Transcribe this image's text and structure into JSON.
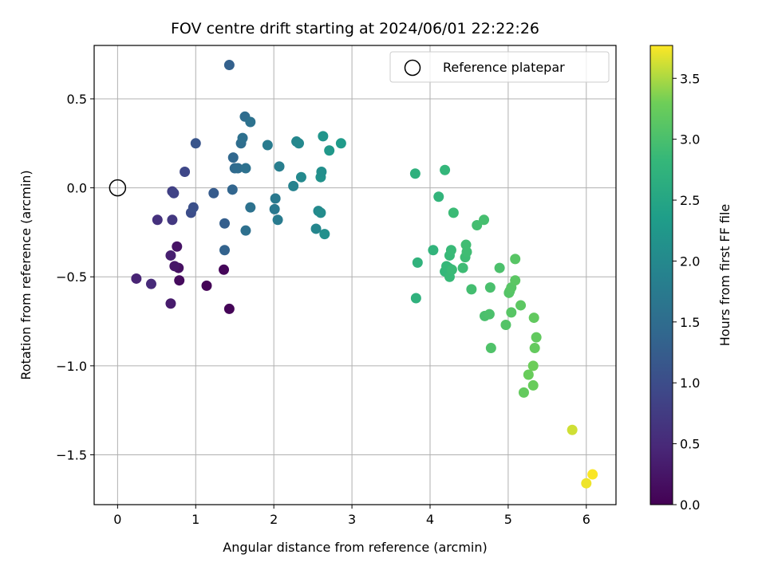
{
  "chart_data": {
    "type": "scatter",
    "title": "FOV centre drift starting at 2024/06/01 22:22:26",
    "xlabel": "Angular distance from reference (arcmin)",
    "ylabel": "Rotation from reference (arcmin)",
    "xlim": [
      -0.3,
      6.38
    ],
    "ylim": [
      -1.78,
      0.8
    ],
    "xticks": [
      0,
      1,
      2,
      3,
      4,
      5,
      6
    ],
    "xtick_labels": [
      "0",
      "1",
      "2",
      "3",
      "4",
      "5",
      "6"
    ],
    "yticks": [
      0.5,
      0.0,
      -0.5,
      -1.0,
      -1.5
    ],
    "ytick_labels": [
      "0.5",
      "0.0",
      "−0.5",
      "−1.0",
      "−1.5"
    ],
    "grid": true,
    "colormap": "viridis",
    "colorbar": {
      "label": "Hours from first FF file",
      "range": [
        0.0,
        3.77
      ],
      "ticks": [
        0.0,
        0.5,
        1.0,
        1.5,
        2.0,
        2.5,
        3.0,
        3.5
      ],
      "tick_labels": [
        "0.0",
        "0.5",
        "1.0",
        "1.5",
        "2.0",
        "2.5",
        "3.0",
        "3.5"
      ]
    },
    "legend": {
      "placement": "top-right",
      "label": "Reference platepar"
    },
    "reference_point": {
      "x": 0.0,
      "y": 0.0,
      "marker": "open-circle"
    },
    "points": [
      {
        "x": 1.14,
        "y": -0.55,
        "c": 0.02
      },
      {
        "x": 1.43,
        "y": -0.68,
        "c": 0.04
      },
      {
        "x": 1.36,
        "y": -0.46,
        "c": 0.06
      },
      {
        "x": 0.79,
        "y": -0.52,
        "c": 0.12
      },
      {
        "x": 0.78,
        "y": -0.45,
        "c": 0.18
      },
      {
        "x": 0.76,
        "y": -0.33,
        "c": 0.22
      },
      {
        "x": 0.73,
        "y": -0.44,
        "c": 0.26
      },
      {
        "x": 0.68,
        "y": -0.65,
        "c": 0.32
      },
      {
        "x": 0.68,
        "y": -0.38,
        "c": 0.36
      },
      {
        "x": 0.24,
        "y": -0.51,
        "c": 0.42
      },
      {
        "x": 0.43,
        "y": -0.54,
        "c": 0.5
      },
      {
        "x": 0.51,
        "y": -0.18,
        "c": 0.6
      },
      {
        "x": 0.7,
        "y": -0.18,
        "c": 0.7
      },
      {
        "x": 0.7,
        "y": -0.02,
        "c": 0.78
      },
      {
        "x": 0.72,
        "y": -0.03,
        "c": 0.85
      },
      {
        "x": 0.86,
        "y": 0.09,
        "c": 0.92
      },
      {
        "x": 0.94,
        "y": -0.14,
        "c": 1.0
      },
      {
        "x": 0.97,
        "y": -0.11,
        "c": 1.05
      },
      {
        "x": 1.0,
        "y": 0.25,
        "c": 1.12
      },
      {
        "x": 1.23,
        "y": -0.03,
        "c": 1.22
      },
      {
        "x": 1.37,
        "y": -0.2,
        "c": 1.28
      },
      {
        "x": 1.37,
        "y": -0.35,
        "c": 1.34
      },
      {
        "x": 1.43,
        "y": 0.69,
        "c": 1.3
      },
      {
        "x": 1.47,
        "y": -0.01,
        "c": 1.38
      },
      {
        "x": 1.48,
        "y": 0.17,
        "c": 1.42
      },
      {
        "x": 1.5,
        "y": 0.11,
        "c": 1.45
      },
      {
        "x": 1.54,
        "y": 0.11,
        "c": 1.48
      },
      {
        "x": 1.58,
        "y": 0.25,
        "c": 1.52
      },
      {
        "x": 1.6,
        "y": 0.28,
        "c": 1.55
      },
      {
        "x": 1.63,
        "y": 0.4,
        "c": 1.5
      },
      {
        "x": 1.64,
        "y": 0.11,
        "c": 1.58
      },
      {
        "x": 1.64,
        "y": -0.24,
        "c": 1.55
      },
      {
        "x": 1.7,
        "y": 0.37,
        "c": 1.6
      },
      {
        "x": 1.7,
        "y": -0.11,
        "c": 1.6
      },
      {
        "x": 1.92,
        "y": 0.24,
        "c": 1.75
      },
      {
        "x": 2.01,
        "y": -0.12,
        "c": 1.7
      },
      {
        "x": 2.02,
        "y": -0.06,
        "c": 1.72
      },
      {
        "x": 2.05,
        "y": -0.18,
        "c": 1.75
      },
      {
        "x": 2.07,
        "y": 0.12,
        "c": 1.82
      },
      {
        "x": 2.25,
        "y": 0.01,
        "c": 1.88
      },
      {
        "x": 2.29,
        "y": 0.26,
        "c": 1.95
      },
      {
        "x": 2.32,
        "y": 0.25,
        "c": 1.98
      },
      {
        "x": 2.35,
        "y": 0.06,
        "c": 2.0
      },
      {
        "x": 2.54,
        "y": -0.23,
        "c": 1.95
      },
      {
        "x": 2.57,
        "y": -0.13,
        "c": 2.0
      },
      {
        "x": 2.6,
        "y": -0.14,
        "c": 2.05
      },
      {
        "x": 2.6,
        "y": 0.06,
        "c": 2.15
      },
      {
        "x": 2.61,
        "y": 0.09,
        "c": 2.1
      },
      {
        "x": 2.63,
        "y": 0.29,
        "c": 2.2
      },
      {
        "x": 2.65,
        "y": -0.26,
        "c": 2.12
      },
      {
        "x": 2.71,
        "y": 0.21,
        "c": 2.25
      },
      {
        "x": 2.86,
        "y": 0.25,
        "c": 2.3
      },
      {
        "x": 3.81,
        "y": 0.08,
        "c": 2.7
      },
      {
        "x": 3.82,
        "y": -0.62,
        "c": 2.72
      },
      {
        "x": 3.84,
        "y": -0.42,
        "c": 2.74
      },
      {
        "x": 4.04,
        "y": -0.35,
        "c": 2.76
      },
      {
        "x": 4.11,
        "y": -0.05,
        "c": 2.78
      },
      {
        "x": 4.19,
        "y": 0.1,
        "c": 2.8
      },
      {
        "x": 4.19,
        "y": -0.47,
        "c": 2.8
      },
      {
        "x": 4.21,
        "y": -0.44,
        "c": 2.82
      },
      {
        "x": 4.24,
        "y": -0.45,
        "c": 2.83
      },
      {
        "x": 4.25,
        "y": -0.38,
        "c": 2.85
      },
      {
        "x": 4.25,
        "y": -0.5,
        "c": 2.85
      },
      {
        "x": 4.27,
        "y": -0.35,
        "c": 2.86
      },
      {
        "x": 4.28,
        "y": -0.46,
        "c": 2.87
      },
      {
        "x": 4.3,
        "y": -0.14,
        "c": 2.88
      },
      {
        "x": 4.42,
        "y": -0.45,
        "c": 2.9
      },
      {
        "x": 4.45,
        "y": -0.39,
        "c": 2.9
      },
      {
        "x": 4.46,
        "y": -0.32,
        "c": 2.92
      },
      {
        "x": 4.47,
        "y": -0.36,
        "c": 2.92
      },
      {
        "x": 4.53,
        "y": -0.57,
        "c": 2.95
      },
      {
        "x": 4.6,
        "y": -0.21,
        "c": 2.95
      },
      {
        "x": 4.69,
        "y": -0.18,
        "c": 2.97
      },
      {
        "x": 4.7,
        "y": -0.72,
        "c": 3.0
      },
      {
        "x": 4.76,
        "y": -0.71,
        "c": 3.02
      },
      {
        "x": 4.77,
        "y": -0.56,
        "c": 3.0
      },
      {
        "x": 4.78,
        "y": -0.9,
        "c": 3.05
      },
      {
        "x": 4.89,
        "y": -0.45,
        "c": 3.02
      },
      {
        "x": 4.97,
        "y": -0.77,
        "c": 3.08
      },
      {
        "x": 5.01,
        "y": -0.59,
        "c": 3.1
      },
      {
        "x": 5.02,
        "y": -0.58,
        "c": 3.1
      },
      {
        "x": 5.04,
        "y": -0.56,
        "c": 3.12
      },
      {
        "x": 5.04,
        "y": -0.7,
        "c": 3.12
      },
      {
        "x": 5.09,
        "y": -0.4,
        "c": 3.12
      },
      {
        "x": 5.09,
        "y": -0.52,
        "c": 3.14
      },
      {
        "x": 5.16,
        "y": -0.66,
        "c": 3.15
      },
      {
        "x": 5.2,
        "y": -1.15,
        "c": 3.22
      },
      {
        "x": 5.26,
        "y": -1.05,
        "c": 3.25
      },
      {
        "x": 5.32,
        "y": -1.11,
        "c": 3.25
      },
      {
        "x": 5.32,
        "y": -1.0,
        "c": 3.28
      },
      {
        "x": 5.33,
        "y": -0.73,
        "c": 3.2
      },
      {
        "x": 5.34,
        "y": -0.9,
        "c": 3.22
      },
      {
        "x": 5.36,
        "y": -0.84,
        "c": 3.2
      },
      {
        "x": 5.82,
        "y": -1.36,
        "c": 3.62
      },
      {
        "x": 6.0,
        "y": -1.66,
        "c": 3.72
      },
      {
        "x": 6.08,
        "y": -1.61,
        "c": 3.76
      }
    ]
  }
}
